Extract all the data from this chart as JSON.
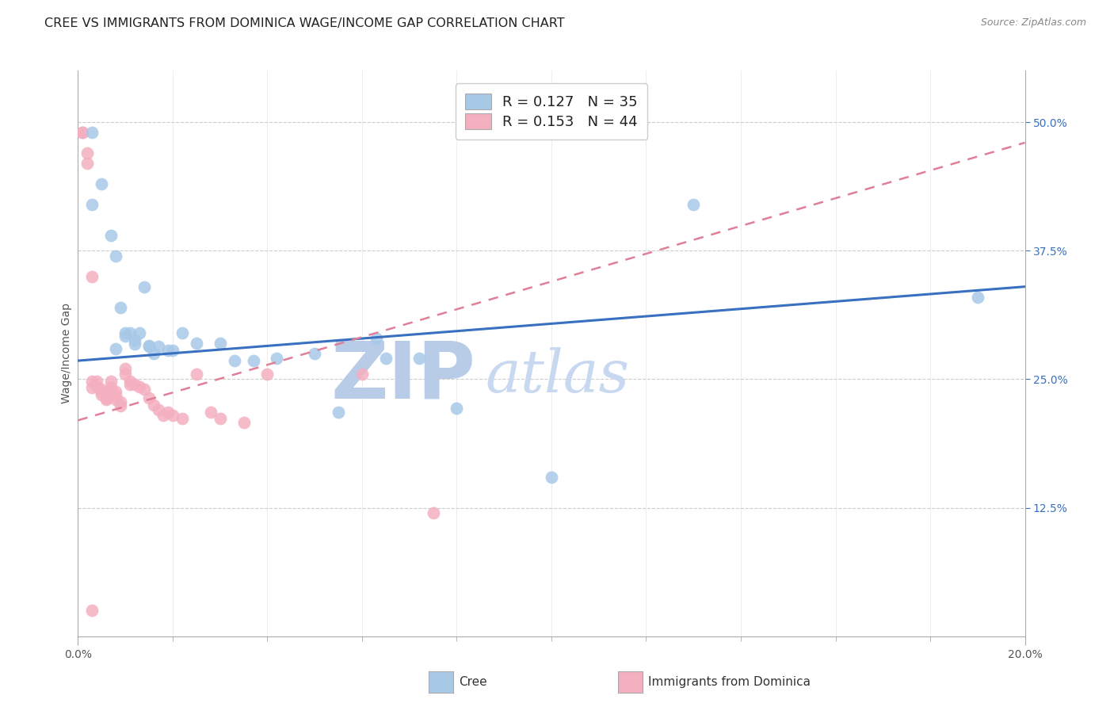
{
  "title": "CREE VS IMMIGRANTS FROM DOMINICA WAGE/INCOME GAP CORRELATION CHART",
  "source_text": "Source: ZipAtlas.com",
  "ylabel": "Wage/Income Gap",
  "xlim": [
    0.0,
    0.2
  ],
  "ylim": [
    0.0,
    0.55
  ],
  "xtick_labels": [
    "0.0%",
    "20.0%"
  ],
  "ytick_positions": [
    0.125,
    0.25,
    0.375,
    0.5
  ],
  "ytick_labels": [
    "12.5%",
    "25.0%",
    "37.5%",
    "50.0%"
  ],
  "cree_color": "#a8c8e8",
  "dominica_color": "#f4afc0",
  "cree_line_color": "#3a70c0",
  "dominica_line_color": "#e08098",
  "legend_label_cree": "R = 0.127   N = 35",
  "legend_label_dominica": "R = 0.153   N = 44",
  "watermark_zip": "ZIP",
  "watermark_atlas": "atlas",
  "grid_color": "#cccccc",
  "background_color": "#ffffff",
  "title_fontsize": 11.5,
  "axis_label_fontsize": 10,
  "tick_fontsize": 10,
  "legend_fontsize": 13,
  "watermark_color_zip": "#b8cce8",
  "watermark_color_atlas": "#c8d8f0",
  "watermark_fontsize": 72,
  "cree_x": [
    0.003,
    0.003,
    0.005,
    0.007,
    0.008,
    0.009,
    0.01,
    0.01,
    0.011,
    0.012,
    0.012,
    0.013,
    0.014,
    0.015,
    0.015,
    0.016,
    0.017,
    0.019,
    0.02,
    0.022,
    0.025,
    0.03,
    0.033,
    0.037,
    0.042,
    0.05,
    0.055,
    0.063,
    0.065,
    0.072,
    0.08,
    0.1,
    0.13,
    0.19,
    0.008
  ],
  "cree_y": [
    0.49,
    0.42,
    0.44,
    0.39,
    0.37,
    0.32,
    0.295,
    0.292,
    0.295,
    0.288,
    0.284,
    0.295,
    0.34,
    0.282,
    0.283,
    0.275,
    0.282,
    0.278,
    0.278,
    0.295,
    0.285,
    0.285,
    0.268,
    0.268,
    0.27,
    0.275,
    0.218,
    0.29,
    0.27,
    0.27,
    0.222,
    0.155,
    0.42,
    0.33,
    0.28
  ],
  "dominica_x": [
    0.001,
    0.001,
    0.002,
    0.002,
    0.003,
    0.003,
    0.003,
    0.004,
    0.004,
    0.005,
    0.005,
    0.005,
    0.006,
    0.006,
    0.007,
    0.007,
    0.007,
    0.008,
    0.008,
    0.008,
    0.009,
    0.009,
    0.01,
    0.01,
    0.011,
    0.011,
    0.012,
    0.013,
    0.014,
    0.015,
    0.016,
    0.017,
    0.018,
    0.019,
    0.02,
    0.022,
    0.025,
    0.028,
    0.03,
    0.035,
    0.04,
    0.06,
    0.075,
    0.003
  ],
  "dominica_y": [
    0.49,
    0.49,
    0.47,
    0.46,
    0.35,
    0.248,
    0.242,
    0.248,
    0.243,
    0.24,
    0.238,
    0.235,
    0.232,
    0.23,
    0.248,
    0.242,
    0.24,
    0.238,
    0.234,
    0.23,
    0.228,
    0.224,
    0.26,
    0.255,
    0.248,
    0.245,
    0.245,
    0.243,
    0.24,
    0.232,
    0.225,
    0.22,
    0.215,
    0.218,
    0.215,
    0.212,
    0.255,
    0.218,
    0.212,
    0.208,
    0.255,
    0.255,
    0.12,
    0.025
  ]
}
